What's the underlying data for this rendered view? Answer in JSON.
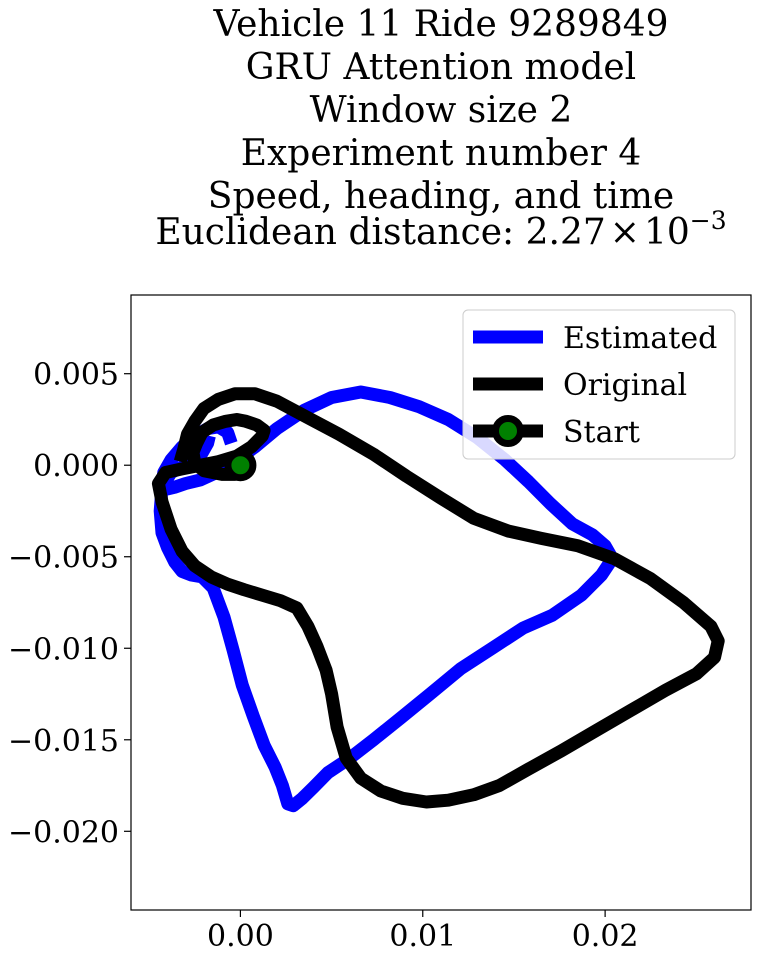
{
  "chart_data": {
    "type": "line",
    "title_lines": [
      "Vehicle 11 Ride 9289849",
      "GRU Attention model",
      "Window size 2",
      "Experiment number 4",
      "Speed, heading, and time"
    ],
    "title_distance_prefix": "Euclidean distance: 2.27",
    "title_distance_times": "×",
    "title_distance_base": "10",
    "title_distance_exponent": "−3",
    "xlim": [
      -0.006,
      0.028
    ],
    "ylim": [
      -0.0243,
      0.0093
    ],
    "x_ticks": [
      0.0,
      0.01,
      0.02
    ],
    "x_tick_labels": [
      "0.00",
      "0.01",
      "0.02"
    ],
    "y_ticks": [
      0.005,
      0.0,
      -0.005,
      -0.01,
      -0.015,
      -0.02
    ],
    "y_tick_labels": [
      "0.005",
      "0.000",
      "−0.005",
      "−0.010",
      "−0.015",
      "−0.020"
    ],
    "grid": false,
    "legend_position": "top-right",
    "series": [
      {
        "name": "Estimated",
        "color": "#0000ff",
        "x": [
          -0.0005,
          -0.0007,
          -0.0012,
          -0.0018,
          -0.0025,
          -0.0032,
          -0.0038,
          -0.0042,
          -0.0043,
          -0.004,
          -0.0036,
          -0.003,
          -0.0022,
          -0.0013,
          -0.0003,
          0.0008,
          0.002,
          0.0035,
          0.005,
          0.0066,
          0.0082,
          0.0098,
          0.0114,
          0.013,
          0.0145,
          0.0158,
          0.017,
          0.0182,
          0.0193,
          0.02,
          0.0204,
          0.0198,
          0.0187,
          0.0171,
          0.0155,
          0.0138,
          0.0121,
          0.0104,
          0.0088,
          0.0073,
          0.006,
          0.0048,
          0.004,
          0.0034,
          0.0029,
          0.0026,
          0.0023,
          0.0019,
          0.0013,
          0.0007,
          0.0001,
          -0.0004,
          -0.0009,
          -0.0015,
          -0.0021,
          -0.0027,
          -0.0032,
          -0.0036,
          -0.004,
          -0.0043,
          -0.0044,
          -0.0043,
          -0.0038,
          -0.003,
          -0.0022,
          -0.0018,
          -0.0017
        ],
        "y": [
          0.0012,
          0.0018,
          0.0021,
          0.002,
          0.0016,
          0.001,
          0.0003,
          -0.0004,
          -0.001,
          -0.0013,
          -0.0012,
          -0.001,
          -0.0008,
          -0.0004,
          0.0002,
          0.001,
          0.002,
          0.003,
          0.0037,
          0.004,
          0.0037,
          0.0032,
          0.0025,
          0.0015,
          0.0003,
          -0.0009,
          -0.0021,
          -0.0032,
          -0.0038,
          -0.0044,
          -0.0051,
          -0.006,
          -0.0071,
          -0.0082,
          -0.0089,
          -0.01,
          -0.0111,
          -0.0125,
          -0.0138,
          -0.015,
          -0.016,
          -0.0168,
          -0.0176,
          -0.0182,
          -0.0186,
          -0.0185,
          -0.0175,
          -0.0165,
          -0.0153,
          -0.0137,
          -0.012,
          -0.0101,
          -0.0083,
          -0.0067,
          -0.0061,
          -0.006,
          -0.0058,
          -0.0053,
          -0.0045,
          -0.0037,
          -0.0025,
          -0.0012,
          -0.0004,
          0.0,
          0.0005,
          0.0012,
          0.0016
        ]
      },
      {
        "name": "Original",
        "color": "#000000",
        "x": [
          0.0,
          0.0,
          -0.0003,
          -0.001,
          -0.002,
          -0.0025,
          -0.0026,
          -0.0024,
          -0.0021,
          -0.0015,
          -0.0008,
          -0.0002,
          0.0003,
          0.0009,
          0.0013,
          0.0012,
          0.0006,
          -0.0002,
          -0.0012,
          -0.0022,
          -0.0032,
          -0.0041,
          -0.0045,
          -0.0043,
          -0.0038,
          -0.0032,
          -0.0025,
          -0.0016,
          -0.0007,
          0.0002,
          0.0012,
          0.0022,
          0.0031,
          0.0037,
          0.0042,
          0.0047,
          0.005,
          0.0053,
          0.0058,
          0.0066,
          0.0077,
          0.0089,
          0.0102,
          0.0114,
          0.0128,
          0.0142,
          0.0158,
          0.0176,
          0.0195,
          0.0214,
          0.0233,
          0.025,
          0.026,
          0.0262,
          0.0258,
          0.0243,
          0.0225,
          0.0205,
          0.0185,
          0.0165,
          0.0147,
          0.0128,
          0.011,
          0.0091,
          0.0073,
          0.0054,
          0.0035,
          0.002,
          0.0008,
          -0.0003,
          -0.0012,
          -0.002,
          -0.0025,
          -0.0029,
          -0.0031,
          -0.0033
        ],
        "y": [
          0.0,
          -0.0002,
          -0.0005,
          -0.0005,
          -0.0003,
          0.0001,
          0.0007,
          0.0012,
          0.0018,
          0.0022,
          0.0024,
          0.0025,
          0.0024,
          0.0022,
          0.0019,
          0.0016,
          0.001,
          0.0005,
          0.0002,
          0.0,
          -0.0002,
          -0.0004,
          -0.001,
          -0.002,
          -0.0035,
          -0.0047,
          -0.0055,
          -0.0061,
          -0.0065,
          -0.0068,
          -0.0071,
          -0.0074,
          -0.0078,
          -0.0088,
          -0.0099,
          -0.0112,
          -0.0125,
          -0.0143,
          -0.016,
          -0.0171,
          -0.0178,
          -0.0182,
          -0.0184,
          -0.0183,
          -0.018,
          -0.0175,
          -0.0166,
          -0.0156,
          -0.0145,
          -0.0134,
          -0.0123,
          -0.0114,
          -0.0105,
          -0.0096,
          -0.0088,
          -0.0075,
          -0.0062,
          -0.0051,
          -0.0044,
          -0.004,
          -0.0036,
          -0.0029,
          -0.0018,
          -0.0006,
          0.0006,
          0.0017,
          0.0027,
          0.0035,
          0.0039,
          0.0039,
          0.0036,
          0.0031,
          0.0024,
          0.0017,
          0.0009,
          0.0002
        ]
      }
    ],
    "start": {
      "name": "Start",
      "x": 0.0,
      "y": 0.0,
      "outer_color": "#000000",
      "inner_color": "#008000"
    }
  }
}
